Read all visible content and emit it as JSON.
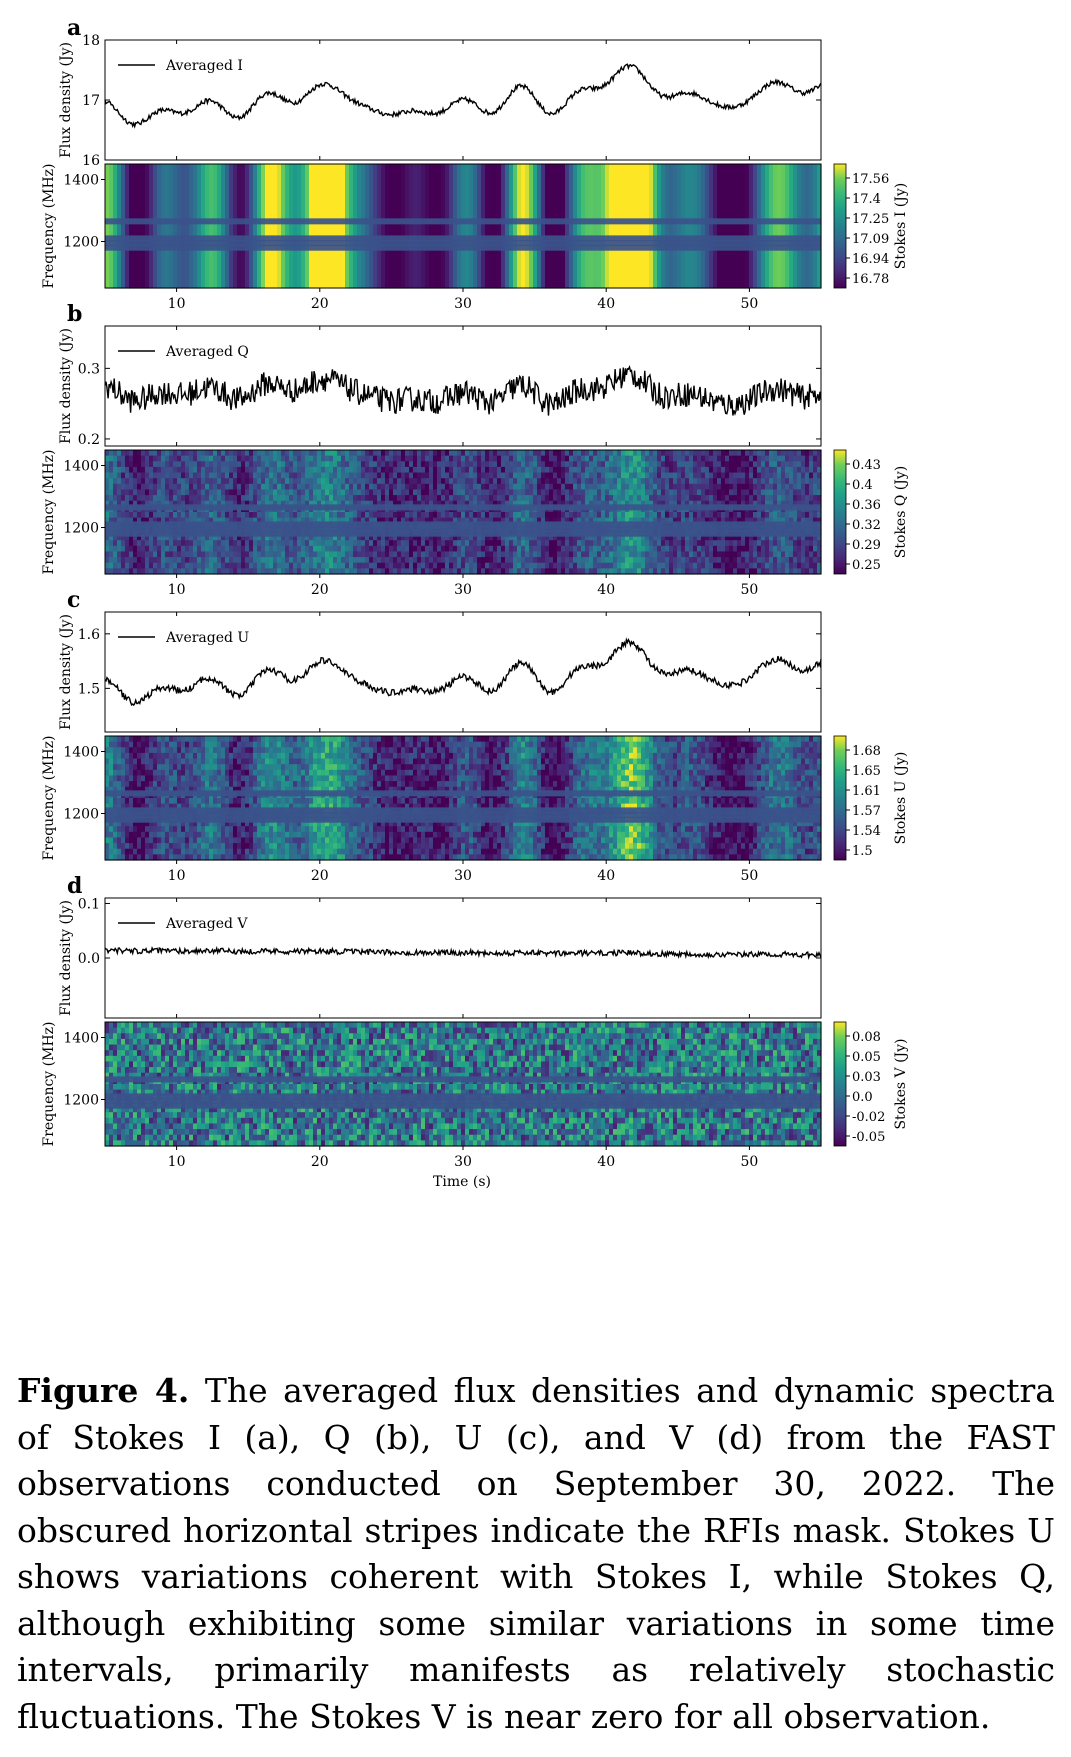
{
  "chart_data": {
    "type": "line",
    "xlabel": "Time (s)",
    "x_ticks": [
      10,
      20,
      30,
      40,
      50
    ],
    "xlim": [
      5,
      55
    ],
    "spectrum_ylabel": "Frequency (MHz)",
    "spectrum_yticks": [
      1200,
      1400
    ],
    "spectrum_ylim": [
      1050,
      1450
    ],
    "rfi_mask_rows_mhz": [
      1180,
      1195,
      1210,
      1265
    ],
    "panels": [
      {
        "letter": "a",
        "legend": "Averaged I",
        "ylabel": "Flux density (Jy)",
        "yticks": [
          "16",
          "17",
          "18"
        ],
        "ylim": [
          16,
          18
        ],
        "mean": 17.0,
        "drift": 0.45,
        "amp": 0.35,
        "noise": 0.04,
        "colorbar_label": "Stokes I (Jy)",
        "colorbar_ticks": [
          "17.56",
          "17.4",
          "17.25",
          "17.09",
          "16.94",
          "16.78"
        ]
      },
      {
        "letter": "b",
        "legend": "Averaged Q",
        "ylabel": "Flux density (Jy)",
        "yticks": [
          "0.2",
          "0.3"
        ],
        "ylim": [
          0.19,
          0.36
        ],
        "mean": 0.265,
        "drift": 0.0,
        "amp": 0.02,
        "noise": 0.018,
        "colorbar_label": "Stokes Q (Jy)",
        "colorbar_ticks": [
          "0.43",
          "0.4",
          "0.36",
          "0.32",
          "0.29",
          "0.25"
        ]
      },
      {
        "letter": "c",
        "legend": "Averaged U",
        "ylabel": "Flux density (Jy)",
        "yticks": [
          "1.5",
          "1.6"
        ],
        "ylim": [
          1.42,
          1.64
        ],
        "mean": 1.52,
        "drift": 0.05,
        "amp": 0.04,
        "noise": 0.006,
        "colorbar_label": "Stokes U (Jy)",
        "colorbar_ticks": [
          "1.68",
          "1.65",
          "1.61",
          "1.57",
          "1.54",
          "1.5"
        ]
      },
      {
        "letter": "d",
        "legend": "Averaged V",
        "ylabel": "Flux density (Jy)",
        "yticks": [
          "0.0",
          "0.1"
        ],
        "ylim": [
          -0.11,
          0.11
        ],
        "mean": 0.01,
        "drift": -0.008,
        "amp": 0.001,
        "noise": 0.005,
        "colorbar_label": "Stokes V (Jy)",
        "colorbar_ticks": [
          "0.08",
          "0.05",
          "0.03",
          "0.0",
          "-0.02",
          "-0.05"
        ]
      }
    ]
  },
  "caption": {
    "label": "Figure 4.",
    "text": "The averaged flux densities and dynamic spectra of Stokes I (a), Q (b), U (c), and V (d) from the FAST observations conducted on September 30, 2022. The obscured horizontal stripes indicate the RFIs mask. Stokes U shows variations coherent with Stokes I, while Stokes Q, although exhibiting some similar variations in some time intervals, primarily manifests as relatively stochastic fluctuations. The Stokes V is near zero for all observation."
  },
  "colors": {
    "line": "#000000",
    "rfi_mask": "#3b528b"
  }
}
